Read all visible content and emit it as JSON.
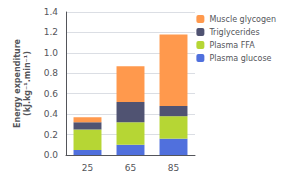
{
  "chart_data": {
    "type": "bar",
    "stacked": true,
    "categories": [
      "25",
      "65",
      "85"
    ],
    "series": [
      {
        "name": "Plasma glucose",
        "values": [
          0.05,
          0.1,
          0.16
        ]
      },
      {
        "name": "Plasma FFA",
        "values": [
          0.2,
          0.22,
          0.22
        ]
      },
      {
        "name": "Triglycerides",
        "values": [
          0.07,
          0.2,
          0.1
        ]
      },
      {
        "name": "Muscle glycogen",
        "values": [
          0.05,
          0.35,
          0.7
        ]
      }
    ],
    "ylabel": [
      "Energy expenditure",
      "(kJ.kg⁻¹.min⁻¹)"
    ],
    "ylim": [
      0,
      1.4
    ],
    "yticks": [
      {
        "value": 0,
        "label": "0.0"
      },
      0.2,
      0.4,
      0.6,
      0.8,
      {
        "value": 1,
        "label": "1.0"
      },
      1.2,
      1.4
    ],
    "grid": true,
    "legend": "right"
  }
}
